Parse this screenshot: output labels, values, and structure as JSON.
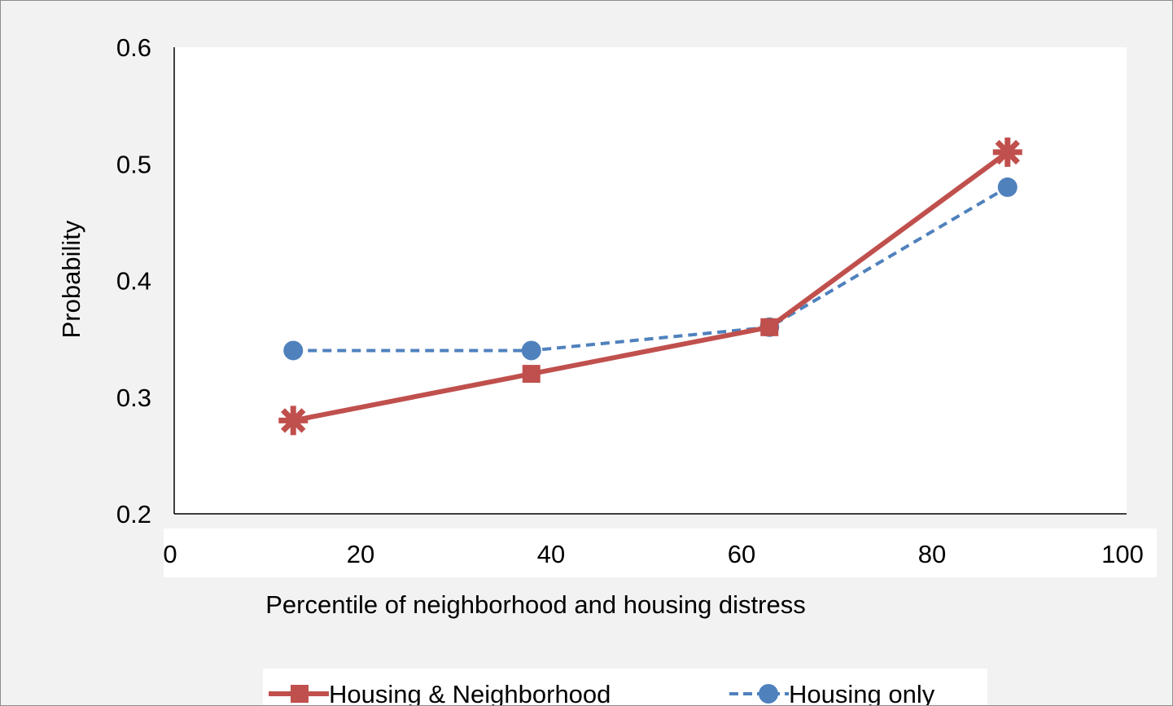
{
  "chart_data": {
    "type": "line",
    "xlabel": "Percentile of neighborhood and housing distress",
    "ylabel": "Probability",
    "xlim": [
      0,
      100
    ],
    "ylim": [
      0.2,
      0.6
    ],
    "xticks": [
      0,
      20,
      40,
      60,
      80,
      100
    ],
    "yticks": [
      0.2,
      0.3,
      0.4,
      0.5,
      0.6
    ],
    "xtick_labels": [
      "0",
      "20",
      "40",
      "60",
      "80",
      "100"
    ],
    "ytick_labels": [
      "0.2",
      "0.3",
      "0.4",
      "0.5",
      "0.6"
    ],
    "grid": false,
    "legend_position": "bottom",
    "series": [
      {
        "name": "Housing & Neighborhood",
        "x": [
          12.5,
          37.5,
          62.5,
          87.5
        ],
        "y": [
          0.28,
          0.32,
          0.36,
          0.51
        ],
        "color": "#c0504d",
        "line_style": "solid",
        "marker": "square",
        "highlighted_points": [
          0,
          3
        ],
        "highlight_marker": "asterisk"
      },
      {
        "name": "Housing only",
        "x": [
          12.5,
          37.5,
          62.5,
          87.5
        ],
        "y": [
          0.34,
          0.34,
          0.36,
          0.48
        ],
        "color": "#4f81bd",
        "line_style": "dashed",
        "marker": "circle"
      }
    ]
  }
}
